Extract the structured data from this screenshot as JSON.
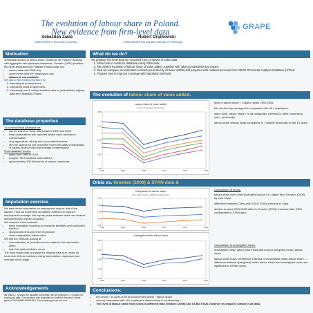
{
  "header": {
    "title_line1": "The evolution of labour share in Poland.",
    "title_line2": "New evidence from firm-level data",
    "author1": "Sebastian Zalas",
    "author2": "Hubert Drążkowski",
    "affil1": "FAME|GRAPE & University of Warsaw",
    "affil2": "FAME|GRAPE and Warsaw University of Technology",
    "logo_text": "GRAPE"
  },
  "motivation": {
    "heading": "Motivation",
    "intro": "Worldwide decline of labour share. Evidence for Poland? Working with aggregate has important drawbacks. Growiec (2009) provides firm-level estimates from Statistic Poland data, but:",
    "bullets": [
      "covers data until 2008 only",
      "covers firms with 49+ employees only",
      "dataset is not available."
    ],
    "add_line": "We add to the existing literature by",
    "items": [
      "extending to present times,",
      "comparing small & large firms,",
      "comparing new & widely available data to (unavailable) registry data from Statistics Poland."
    ]
  },
  "db_props": {
    "heading": "The database properties",
    "construct": "To construct final database we:",
    "bullets": [
      "use 10 waves of Orbis data between 2000 and 2020",
      "keep observations with reported added value and labour compensation",
      "drop agriculture, mining and non-market services",
      "trim the sample by one percentile from both sides of distribution of capital-to-labor ratio and average compensation"
    ],
    "final": "Final database covers:",
    "final_bullets": [
      "years from 1995 to 2019",
      "roughly 730 thousands observations",
      "approximately 190 thousands of unique companies."
    ]
  },
  "imputation": {
    "heading": "Imputation exercise",
    "p1": "We have direct information on employment only for half of the sample. Thus we implement imputation methods to improve employment coverage. We impute years between which we observe employment for a given company.",
    "compare": "We compare a few methods",
    "methods": [
      "naive imputation resorting to economic identities and production function",
      "idiosyncratic firm-year level regression",
      "linear interpolation within a firm"
    ],
    "test": "We test the methods looking at",
    "tests": [
      "characteristics of prediction errors made for the observable years",
      "train test split prediction errors"
    ],
    "conclusion": "The most robust way to impute the missing data is to create an ensemble of three methods, being interpolation, regression and average sector wage."
  },
  "ack": {
    "heading": "Acknowledgements",
    "text": "We thank J. Tyrowicz for valuable comments. We are grateful to J. Growiec for sharing his data. This research was supported by National Research Center (grant # 2019/35/B/HS4/00481). The remaining errors are ours."
  },
  "whatwedo": {
    "heading": "What do we do?",
    "intro": "We prepare firm level data set compiled from 10 waves of Orbis data",
    "items": [
      "Show how to construct database using Orbis data.",
      "We present evolution of labour share of value added, together with labour productivity and wages.",
      "Next we compare our estimates to those presented by Growiec (2009) and prepared with national accounts from OECD STructural ANalysis Database (STAN).",
      "Propose how to improve coverage with imputation methods."
    ]
  },
  "evolution": {
    "heading_pre": "The evolution of ",
    "heading_hl": "labour share of value added.",
    "notes": [
      "level of labour share ↓ 10ppt in years 2000-2005",
      "this decline was stronger for companies with 49+ employees.",
      "since 2005, labour share ↑ in all categories, whereas in other countries it was ↓ profoundly",
      "labour share among small companies is ↑ notably dismutally in first 10 years."
    ]
  },
  "orbis": {
    "heading_pre": "Orbis vs. ",
    "heading_hl": "Growiec (2009) & STAN data &",
    "comp_title": "Comparison of levels:",
    "comp_notes": [
      "labour share from Orbis fluctuates around 0.6, higher than Growiec (2009) by over 10ppt.",
      "difference between Orbis and OCED STAN amounts to 20pp",
      "decline in years 2000-2005 alike to Growiec (2009); increase after 2005 comparable to STAN data."
    ],
    "unw_title": "Comparison to unweighted mean.",
    "unw_notes": [
      "unweighted mean labour share fluctuate around (weighted mean) labour share.",
      "labour share leave confidence intervals of unweighted mean labour share — difference between (weighted) mean labour share and unweighted mean are significant in certain years."
    ]
  },
  "conclusions": {
    "heading": "Conclusions:",
    "items": [
      "We report ↓ in 2000-2005 and since then stably ↑ labour share.",
      "Among companies with 49+ employees labour share is continuously ↑.",
      "The level of labour share from Orbis is different than Growiec (2009) and OCED STAN, however its shape is similar in all data."
    ]
  },
  "colors": {
    "section": "#2f6f9a",
    "accent": "#f4c84a",
    "title": "#1a5a9a"
  },
  "chart_data": [
    {
      "type": "line",
      "title": "Labour share of value added",
      "subtitle": "by size of company and industry",
      "xlabel": "",
      "ylabel": "",
      "x": [
        1995,
        2000,
        2005,
        2010,
        2015,
        2019
      ],
      "ylim": [
        0.45,
        0.85
      ],
      "xticks": [
        "1995",
        "2000",
        "2005",
        "2010",
        "2015",
        "2020"
      ],
      "series": [
        {
          "values": [
            0.78,
            0.77,
            0.62,
            0.66,
            0.69,
            0.72
          ]
        },
        {
          "values": [
            0.74,
            0.73,
            0.59,
            0.63,
            0.66,
            0.68
          ]
        },
        {
          "values": [
            0.7,
            0.7,
            0.56,
            0.6,
            0.63,
            0.65
          ]
        },
        {
          "values": [
            0.66,
            0.66,
            0.53,
            0.58,
            0.61,
            0.63
          ]
        },
        {
          "values": [
            0.63,
            0.62,
            0.51,
            0.55,
            0.58,
            0.61
          ]
        },
        {
          "values": [
            0.6,
            0.59,
            0.49,
            0.53,
            0.56,
            0.58
          ]
        }
      ]
    },
    {
      "type": "line",
      "title": "Comparison of labour share",
      "subtitle": "from Orbis, Growiec (2009) and STAN data",
      "x": [
        1995,
        2000,
        2005,
        2010,
        2015,
        2019
      ],
      "ylim": [
        0.35,
        0.75
      ],
      "xticks": [
        "1995",
        "2000",
        "2005",
        "2010",
        "2015",
        "2020"
      ],
      "series": [
        {
          "values": [
            0.64,
            0.63,
            0.56,
            0.6,
            0.61,
            0.62
          ]
        },
        {
          "values": [
            0.55,
            0.54,
            0.47,
            0.49,
            0.5,
            0.51
          ]
        },
        {
          "values": [
            0.45,
            0.44,
            0.38,
            0.4,
            0.42,
            0.43
          ]
        }
      ]
    },
    {
      "type": "line",
      "title": "Unweighted mean labour share",
      "x": [
        1995,
        2000,
        2005,
        2010,
        2015,
        2019
      ],
      "ylim": [
        0.5,
        0.85
      ],
      "xticks": [
        "1995",
        "2000",
        "2005",
        "2010",
        "2015",
        "2020"
      ],
      "series": [
        {
          "values": [
            0.72,
            0.71,
            0.63,
            0.67,
            0.69,
            0.71
          ]
        },
        {
          "values": [
            0.69,
            0.67,
            0.6,
            0.64,
            0.65,
            0.68
          ]
        }
      ]
    }
  ]
}
